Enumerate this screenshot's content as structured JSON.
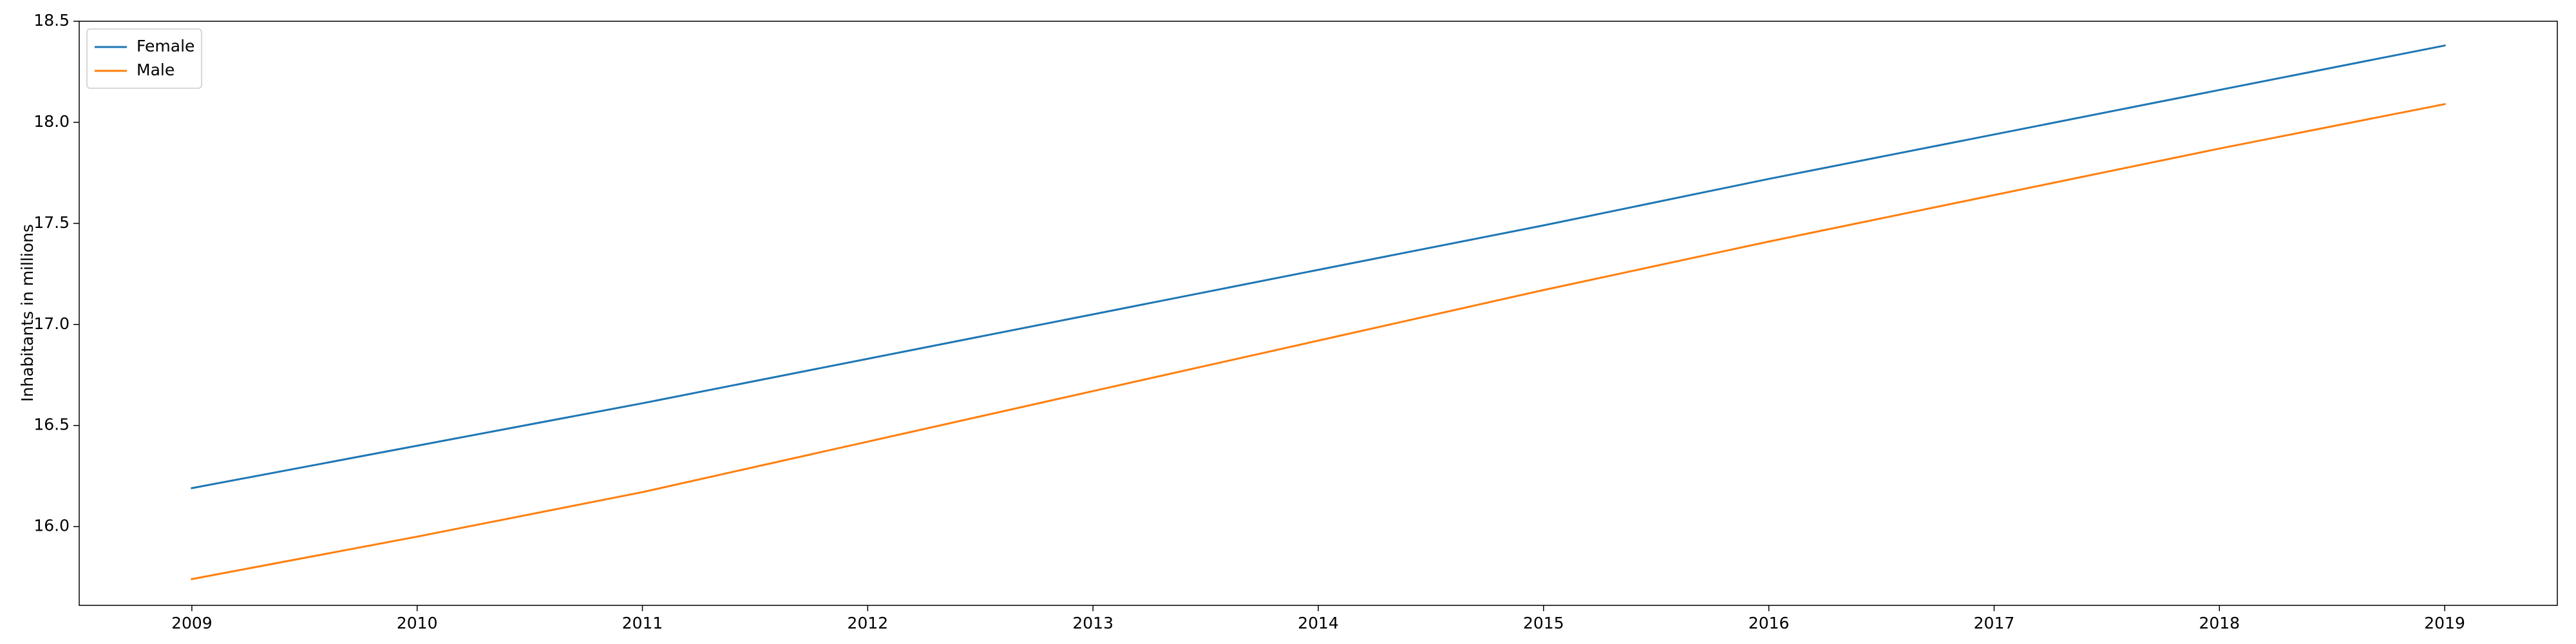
{
  "chart_data": {
    "type": "line",
    "title": "",
    "xlabel": "",
    "ylabel": "Inhabitants in millions",
    "x": [
      2009,
      2010,
      2011,
      2012,
      2013,
      2014,
      2015,
      2016,
      2017,
      2018,
      2019
    ],
    "xlim": [
      2008.5,
      2019.5
    ],
    "ylim": [
      15.61,
      18.5
    ],
    "xticks": [
      "2009",
      "2010",
      "2011",
      "2012",
      "2013",
      "2014",
      "2015",
      "2016",
      "2017",
      "2018",
      "2019"
    ],
    "yticks": [
      "16.0",
      "16.5",
      "17.0",
      "17.5",
      "18.0",
      "18.5"
    ],
    "ytick_values": [
      16.0,
      16.5,
      17.0,
      17.5,
      18.0,
      18.5
    ],
    "grid": false,
    "legend_position": "top-left",
    "series": [
      {
        "name": "Female",
        "color": "#1f77b4",
        "values": [
          16.19,
          16.4,
          16.61,
          16.83,
          17.05,
          17.27,
          17.49,
          17.72,
          17.94,
          18.16,
          18.38
        ]
      },
      {
        "name": "Male",
        "color": "#ff7f0e",
        "values": [
          15.74,
          15.95,
          16.17,
          16.42,
          16.67,
          16.92,
          17.17,
          17.41,
          17.64,
          17.87,
          18.09
        ]
      }
    ]
  }
}
